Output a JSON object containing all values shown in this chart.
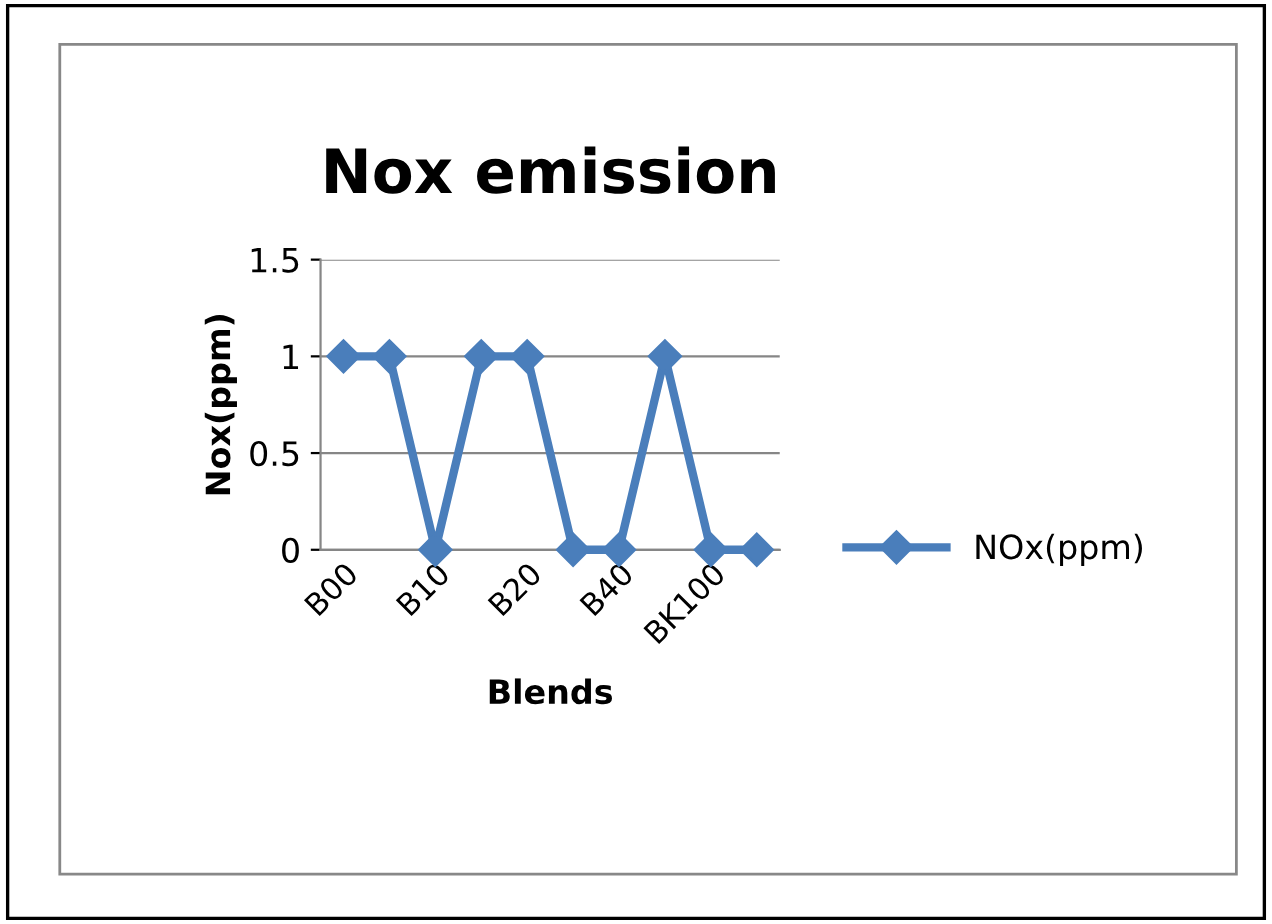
{
  "chart_data": {
    "type": "line",
    "title": "Nox emission",
    "xlabel": "Blends",
    "ylabel": "Nox(ppm)",
    "categories": [
      "B00",
      null,
      "B10",
      null,
      "B20",
      null,
      "B40",
      null,
      "BK100",
      null
    ],
    "series": [
      {
        "name": "NOx(ppm)",
        "color": "#4a7ebb",
        "values": [
          1,
          1,
          0,
          1,
          1,
          0,
          0,
          1,
          0,
          0
        ]
      }
    ],
    "ylim": [
      0,
      1.5
    ],
    "yticks": [
      0,
      0.5,
      1,
      1.5
    ],
    "grid": "y",
    "legend": "right",
    "marker": "diamond",
    "line_style": "solid"
  }
}
